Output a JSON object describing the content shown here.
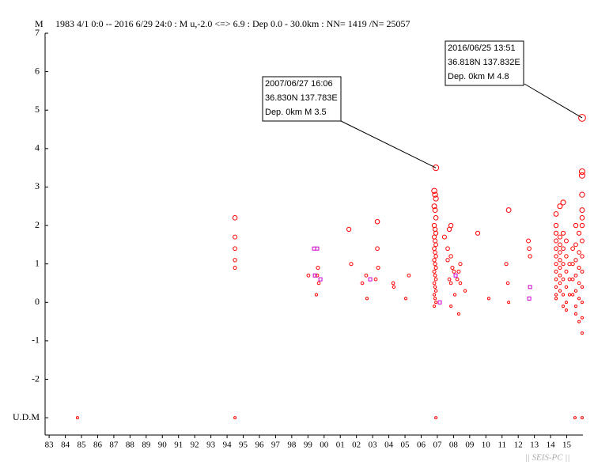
{
  "chart_data": {
    "type": "scatter",
    "title": "1983 4/1 0:0 -- 2016 6/29 24:0  : M u,-2.0 <=> 6.9  :  Dep 0.0 - 30.0km :  NN= 1419 /N= 25057",
    "y_label": "M",
    "footer": "|| SEIS-PC ||",
    "xlim": [
      1983.25,
      2016.5
    ],
    "ylim": [
      -3.45,
      7
    ],
    "yticks": [
      7,
      6,
      5,
      4,
      3,
      2,
      1,
      0,
      -1,
      -2,
      {
        "value": -3,
        "label": "U.D.M"
      }
    ],
    "xticks": [
      {
        "value": 1983.5,
        "label": "83"
      },
      {
        "value": 1984.5,
        "label": "84"
      },
      {
        "value": 1985.5,
        "label": "85"
      },
      {
        "value": 1986.5,
        "label": "86"
      },
      {
        "value": 1987.5,
        "label": "87"
      },
      {
        "value": 1988.5,
        "label": "88"
      },
      {
        "value": 1989.5,
        "label": "89"
      },
      {
        "value": 1990.5,
        "label": "90"
      },
      {
        "value": 1991.5,
        "label": "91"
      },
      {
        "value": 1992.5,
        "label": "92"
      },
      {
        "value": 1993.5,
        "label": "93"
      },
      {
        "value": 1994.5,
        "label": "94"
      },
      {
        "value": 1995.5,
        "label": "95"
      },
      {
        "value": 1996.5,
        "label": "96"
      },
      {
        "value": 1997.5,
        "label": "97"
      },
      {
        "value": 1998.5,
        "label": "98"
      },
      {
        "value": 1999.5,
        "label": "99"
      },
      {
        "value": 2000.5,
        "label": "00"
      },
      {
        "value": 2001.5,
        "label": "01"
      },
      {
        "value": 2002.5,
        "label": "02"
      },
      {
        "value": 2003.5,
        "label": "03"
      },
      {
        "value": 2004.5,
        "label": "04"
      },
      {
        "value": 2005.5,
        "label": "05"
      },
      {
        "value": 2006.5,
        "label": "06"
      },
      {
        "value": 2007.5,
        "label": "07"
      },
      {
        "value": 2008.5,
        "label": "08"
      },
      {
        "value": 2009.5,
        "label": "09"
      },
      {
        "value": 2010.5,
        "label": "10"
      },
      {
        "value": 2011.5,
        "label": "11"
      },
      {
        "value": 2012.5,
        "label": "12"
      },
      {
        "value": 2013.5,
        "label": "13"
      },
      {
        "value": 2014.5,
        "label": "14"
      },
      {
        "value": 2015.5,
        "label": "15"
      }
    ],
    "series": [
      {
        "color": "#ff0000",
        "marker": "circle",
        "x": [
          1985.25,
          1994.99,
          2007.41,
          2016.01,
          2016.45,
          1994.99,
          1994.99,
          1994.99,
          1994.99,
          1994.99,
          1999.53,
          2000.07,
          2000.12,
          2000.17,
          2000.02,
          2002.03,
          2002.17,
          2002.86,
          2003.1,
          2003.15,
          2003.69,
          2003.79,
          2003.79,
          2003.84,
          2004.77,
          2004.81,
          2005.55,
          2005.74,
          2007.31,
          2007.36,
          2007.41,
          2007.31,
          2007.36,
          2007.41,
          2007.31,
          2007.36,
          2007.41,
          2007.31,
          2007.36,
          2007.41,
          2007.31,
          2007.36,
          2007.41,
          2007.31,
          2007.36,
          2007.41,
          2007.31,
          2007.36,
          2007.41,
          2007.31,
          2007.36,
          2007.41,
          2007.31,
          2007.36,
          2007.41,
          2007.31,
          2007.41,
          2007.94,
          2008.14,
          2008.34,
          2008.24,
          2008.14,
          2008.34,
          2008.43,
          2008.24,
          2008.34,
          2008.53,
          2008.82,
          2008.73,
          2008.92,
          2008.82,
          2008.34,
          2008.58,
          2009.22,
          2008.92,
          2010.0,
          2010.68,
          2011.76,
          2011.91,
          2011.91,
          2011.86,
          2013.13,
          2013.18,
          2013.23,
          2014.84,
          2014.84,
          2014.84,
          2014.84,
          2014.84,
          2014.84,
          2014.84,
          2014.84,
          2014.84,
          2014.84,
          2014.84,
          2014.84,
          2015.08,
          2015.08,
          2015.08,
          2015.08,
          2015.08,
          2015.08,
          2015.08,
          2015.08,
          2015.08,
          2015.28,
          2015.28,
          2015.28,
          2015.28,
          2015.28,
          2015.28,
          2015.28,
          2015.47,
          2015.47,
          2015.47,
          2015.47,
          2015.47,
          2015.47,
          2015.67,
          2015.67,
          2015.67,
          2015.87,
          2015.87,
          2015.87,
          2015.87,
          2016.06,
          2016.06,
          2016.06,
          2016.06,
          2016.06,
          2016.06,
          2016.06,
          2016.26,
          2016.26,
          2016.26,
          2016.26,
          2016.26,
          2016.26,
          2016.45,
          2016.45,
          2016.45,
          2016.45,
          2016.45,
          2016.45,
          2016.45,
          2016.45,
          2016.45,
          2016.45,
          2016.45,
          2016.45,
          2016.45,
          2016.45
        ],
        "values": [
          -3,
          -3,
          -3,
          -3,
          -3,
          2.2,
          1.7,
          1.4,
          1.1,
          0.9,
          0.7,
          0.7,
          0.9,
          0.5,
          0.2,
          1.9,
          1.0,
          0.5,
          0.7,
          0.1,
          0.6,
          1.4,
          2.1,
          0.9,
          0.5,
          0.4,
          0.1,
          0.7,
          2.9,
          2.8,
          2.7,
          2.5,
          2.4,
          2.2,
          2.0,
          1.9,
          1.8,
          1.7,
          1.6,
          1.5,
          1.4,
          1.3,
          1.2,
          1.1,
          1.0,
          0.9,
          0.8,
          0.7,
          0.6,
          0.5,
          0.4,
          0.3,
          0.2,
          0.1,
          0.0,
          -0.1,
          3.5,
          1.7,
          1.4,
          2.0,
          1.9,
          1.1,
          1.2,
          0.9,
          0.6,
          0.5,
          0.8,
          0.8,
          0.6,
          0.5,
          -0.3,
          -0.1,
          0.2,
          0.3,
          1.0,
          1.8,
          0.1,
          1.0,
          2.4,
          0.0,
          0.5,
          1.6,
          1.4,
          1.2,
          2.3,
          2.0,
          1.8,
          1.6,
          1.4,
          1.2,
          1.0,
          0.8,
          0.6,
          0.4,
          0.2,
          0.1,
          2.5,
          1.7,
          1.5,
          1.3,
          1.1,
          0.9,
          0.7,
          0.5,
          0.3,
          2.6,
          1.8,
          1.4,
          1.0,
          0.6,
          0.2,
          -0.1,
          1.6,
          1.2,
          0.8,
          0.4,
          0.0,
          -0.2,
          1.0,
          0.6,
          0.2,
          1.4,
          1.0,
          0.6,
          0.2,
          2.0,
          1.5,
          1.1,
          0.7,
          0.3,
          -0.1,
          -0.3,
          1.8,
          1.3,
          0.9,
          0.5,
          0.1,
          -0.5,
          4.8,
          3.4,
          3.3,
          2.8,
          2.4,
          2.2,
          2.0,
          1.6,
          1.2,
          0.8,
          0.4,
          0.0,
          -0.4,
          -0.8
        ]
      },
      {
        "color": "#cc00cc",
        "marker": "square",
        "x": [
          1999.88,
          2000.07,
          1999.93,
          2000.27,
          2003.35,
          2008.63,
          2007.65,
          2013.18,
          2013.23
        ],
        "values": [
          1.4,
          1.4,
          0.7,
          0.6,
          0.6,
          0.7,
          0.0,
          0.1,
          0.4
        ]
      }
    ],
    "annotations": [
      {
        "lines": [
          "2007/06/27 16:06",
          "36.830N  137.783E",
          "Dep. 0km    M 3.5"
        ],
        "x": 2007.41,
        "y": 3.5
      },
      {
        "lines": [
          "2016/06/25 13:51",
          "36.818N  137.832E",
          "Dep. 0km    M 4.8"
        ],
        "x": 2016.45,
        "y": 4.8
      }
    ]
  }
}
